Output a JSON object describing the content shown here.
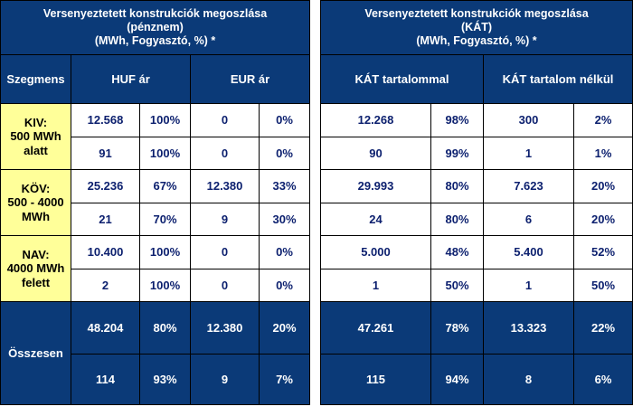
{
  "left": {
    "title": [
      "Versenyeztetett konstrukciók megoszlása",
      "(pénznem)",
      "(MWh, Fogyasztó, %) *"
    ],
    "segment_header": "Szegmens",
    "col_headers": [
      "HUF ár",
      "EUR ár"
    ],
    "rows": [
      {
        "segment": [
          "KIV:",
          "500 MWh",
          "alatt"
        ],
        "mwh": [
          "12.568",
          "100%",
          "0",
          "0%"
        ],
        "count": [
          "91",
          "100%",
          "0",
          "0%"
        ]
      },
      {
        "segment": [
          "KÖV:",
          "500 - 4000",
          "MWh"
        ],
        "mwh": [
          "25.236",
          "67%",
          "12.380",
          "33%"
        ],
        "count": [
          "21",
          "70%",
          "9",
          "30%"
        ]
      },
      {
        "segment": [
          "NAV:",
          "4000 MWh",
          "felett"
        ],
        "mwh": [
          "10.400",
          "100%",
          "0",
          "0%"
        ],
        "count": [
          "2",
          "100%",
          "0",
          "0%"
        ]
      }
    ],
    "total_label": "Összesen",
    "total_mwh": [
      "48.204",
      "80%",
      "12.380",
      "20%"
    ],
    "total_count": [
      "114",
      "93%",
      "9",
      "7%"
    ]
  },
  "right": {
    "title": [
      "Versenyeztetett konstrukciók megoszlása",
      "(KÁT)",
      "(MWh, Fogyasztó, %) *"
    ],
    "col_headers": [
      "KÁT tartalommal",
      "KÁT tartalom nélkül"
    ],
    "rows": [
      {
        "mwh": [
          "12.268",
          "98%",
          "300",
          "2%"
        ],
        "count": [
          "90",
          "99%",
          "1",
          "1%"
        ]
      },
      {
        "mwh": [
          "29.993",
          "80%",
          "7.623",
          "20%"
        ],
        "count": [
          "24",
          "80%",
          "6",
          "20%"
        ]
      },
      {
        "mwh": [
          "5.000",
          "48%",
          "5.400",
          "52%"
        ],
        "count": [
          "1",
          "50%",
          "1",
          "50%"
        ]
      }
    ],
    "total_mwh": [
      "47.261",
      "78%",
      "13.323",
      "22%"
    ],
    "total_count": [
      "115",
      "94%",
      "8",
      "6%"
    ]
  },
  "colors": {
    "header_bg": "#0b3a78",
    "segment_bg": "#ffff99",
    "cell_text": "#0b1f6e"
  }
}
